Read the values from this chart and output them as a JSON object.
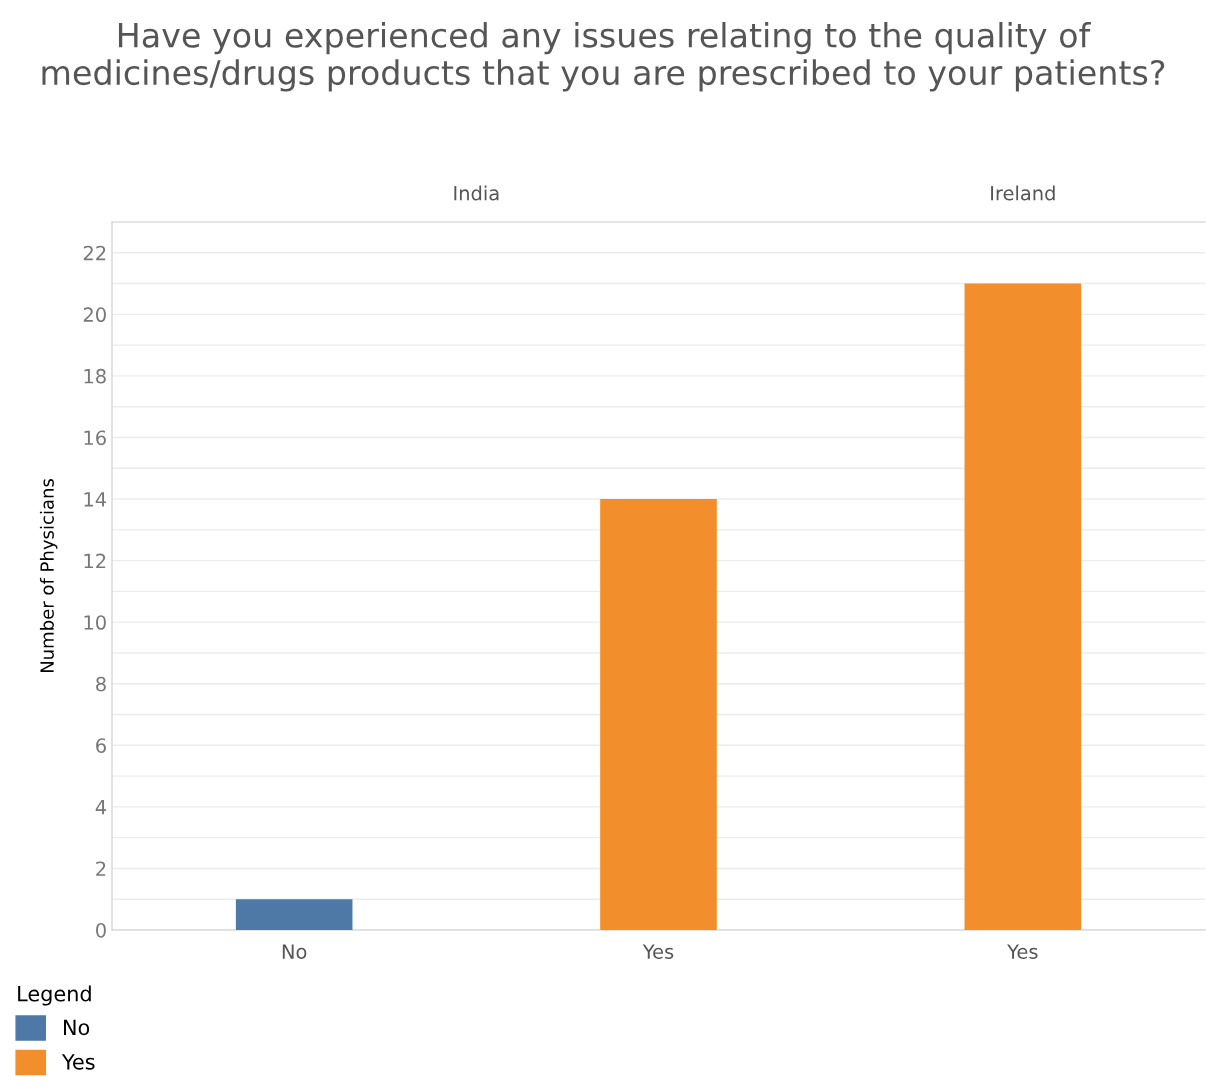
{
  "chart_data": {
    "type": "bar",
    "title": "Have you experienced any issues relating to the quality of medicines/drugs products that you are prescribed to your patients?",
    "ylabel": "Number of Physicians",
    "legend_title": "Legend",
    "legend": "bottom left",
    "grid": "y",
    "annotations": [
      "India",
      "Ireland"
    ],
    "categories": [
      "No",
      "Yes",
      "Yes"
    ],
    "series": [
      {
        "name": "No",
        "color": "#4e79a7",
        "values": [
          1,
          null,
          null
        ]
      },
      {
        "name": "Yes",
        "color": "#f28e2b",
        "values": [
          null,
          14,
          21
        ]
      }
    ],
    "ylim": [
      0,
      23
    ],
    "yticks": [
      0,
      {
        "value": 1,
        "label": null
      },
      2,
      {
        "value": 3,
        "label": null
      },
      4,
      {
        "value": 5,
        "label": null
      },
      6,
      {
        "value": 7,
        "label": null
      },
      8,
      {
        "value": 9,
        "label": null
      },
      10,
      {
        "value": 11,
        "label": null
      },
      12,
      {
        "value": 13,
        "label": null
      },
      14,
      {
        "value": 15,
        "label": null
      },
      16,
      {
        "value": 17,
        "label": null
      },
      18,
      {
        "value": 19,
        "label": null
      },
      20,
      {
        "value": 21,
        "label": null
      },
      22
    ]
  }
}
